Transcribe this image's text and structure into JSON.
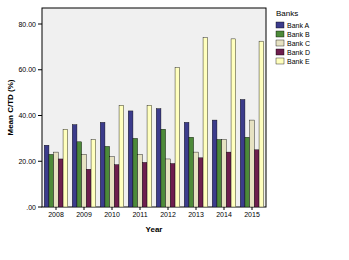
{
  "chart_data": {
    "type": "bar",
    "x_label": "Year",
    "y_label": "Mean C/TD (%)",
    "legend_title": "Banks",
    "legend": "top-right",
    "categories": [
      "2008",
      "2009",
      "2010",
      "2011",
      "2012",
      "2013",
      "2014",
      "2015"
    ],
    "series": [
      {
        "name": "Bank A",
        "color": "#3c3c8c",
        "values": [
          27,
          36,
          37,
          42,
          43,
          37,
          38,
          47
        ]
      },
      {
        "name": "Bank B",
        "color": "#4d8a3a",
        "values": [
          23,
          28.5,
          26.5,
          30,
          34,
          30.5,
          29.5,
          30.5
        ]
      },
      {
        "name": "Bank C",
        "color": "#e6e2c2",
        "values": [
          24,
          23,
          22,
          23,
          21,
          24,
          29.5,
          38
        ]
      },
      {
        "name": "Bank D",
        "color": "#6e1f4e",
        "values": [
          21,
          16.5,
          18.5,
          19.5,
          19,
          21.5,
          24,
          25
        ]
      },
      {
        "name": "Bank E",
        "color": "#ffffbe",
        "values": [
          34,
          29.5,
          44.5,
          44.5,
          61,
          74,
          73.5,
          72.5
        ]
      }
    ],
    "ylim": [
      0,
      87
    ],
    "yticks": [
      {
        "value": 0,
        "label": ".00"
      },
      {
        "value": 20,
        "label": "20.00"
      },
      {
        "value": 40,
        "label": "40.00"
      },
      {
        "value": 60,
        "label": "60.00"
      },
      {
        "value": 80,
        "label": "80.00"
      }
    ],
    "grid": false
  }
}
